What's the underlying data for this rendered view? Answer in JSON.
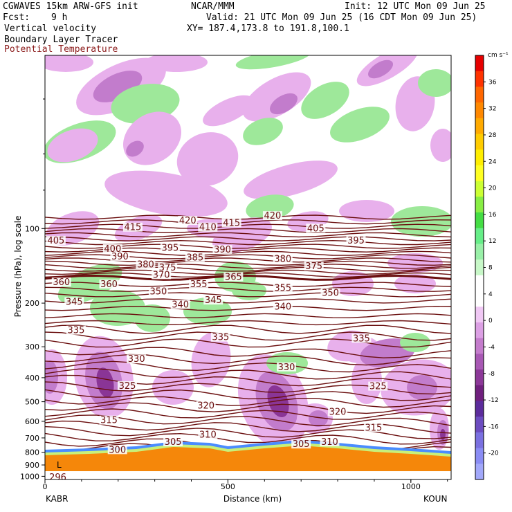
{
  "header": {
    "model": "CGWAVES 15km ARW-GFS init",
    "org": "NCAR/MMM",
    "init": "Init: 12 UTC Mon 09 Jun 25",
    "fcst_label": "Fcst:",
    "fcst_value": "9 h",
    "valid": "Valid: 21 UTC Mon 09 Jun 25 (16 CDT Mon 09 Jun 25)",
    "field1": "Vertical velocity",
    "field2": "Boundary Layer Tracer",
    "field3": "Potential Temperature",
    "xy": "XY= 187.4,173.8 to 191.8,100.1"
  },
  "colors": {
    "theta": "#6b0f0f",
    "terrain": "#f5870a",
    "field3_text": "#8b1a1a",
    "updraft": "#9ee89a",
    "downdraft_light": "#e8b0ec",
    "downdraft_mid": "#c27ccc",
    "downdraft_dark": "#8a3596"
  },
  "chart_data": {
    "type": "cross-section",
    "xlabel": "Distance (km)",
    "ylabel": "Pressure (hPa), log scale",
    "x_ticks": [
      "0",
      "500",
      "1000"
    ],
    "x_tick_values": [
      0,
      500,
      1000
    ],
    "xlim": [
      0,
      1110
    ],
    "y_ticks": [
      "100",
      "200",
      "300",
      "400",
      "500",
      "600",
      "700",
      "800",
      "900",
      "1000"
    ],
    "y_tick_values": [
      100,
      200,
      300,
      400,
      500,
      600,
      700,
      800,
      900,
      1000
    ],
    "ylim": [
      1030,
      20
    ],
    "left_station": "KABR",
    "right_station": "KOUN",
    "low_marker": "L",
    "theta_labels": [
      {
        "text": "420",
        "x": 622,
        "p": 89
      },
      {
        "text": "420",
        "x": 390,
        "p": 93
      },
      {
        "text": "415",
        "x": 240,
        "p": 99
      },
      {
        "text": "415",
        "x": 510,
        "p": 95
      },
      {
        "text": "410",
        "x": 445,
        "p": 99
      },
      {
        "text": "405",
        "x": 30,
        "p": 112
      },
      {
        "text": "405",
        "x": 740,
        "p": 100
      },
      {
        "text": "395",
        "x": 850,
        "p": 112
      },
      {
        "text": "400",
        "x": 185,
        "p": 121
      },
      {
        "text": "395",
        "x": 342,
        "p": 120
      },
      {
        "text": "390",
        "x": 205,
        "p": 130
      },
      {
        "text": "390",
        "x": 485,
        "p": 122
      },
      {
        "text": "385",
        "x": 410,
        "p": 131
      },
      {
        "text": "380",
        "x": 275,
        "p": 140
      },
      {
        "text": "380",
        "x": 650,
        "p": 133
      },
      {
        "text": "375",
        "x": 335,
        "p": 144
      },
      {
        "text": "375",
        "x": 735,
        "p": 142
      },
      {
        "text": "370",
        "x": 318,
        "p": 154
      },
      {
        "text": "365",
        "x": 515,
        "p": 157
      },
      {
        "text": "360",
        "x": 45,
        "p": 165
      },
      {
        "text": "360",
        "x": 175,
        "p": 168
      },
      {
        "text": "355",
        "x": 420,
        "p": 168
      },
      {
        "text": "355",
        "x": 650,
        "p": 174
      },
      {
        "text": "350",
        "x": 310,
        "p": 180
      },
      {
        "text": "350",
        "x": 780,
        "p": 182
      },
      {
        "text": "345",
        "x": 80,
        "p": 198
      },
      {
        "text": "345",
        "x": 460,
        "p": 195
      },
      {
        "text": "340",
        "x": 370,
        "p": 203
      },
      {
        "text": "340",
        "x": 650,
        "p": 207
      },
      {
        "text": "335",
        "x": 85,
        "p": 258
      },
      {
        "text": "335",
        "x": 480,
        "p": 275
      },
      {
        "text": "335",
        "x": 865,
        "p": 278
      },
      {
        "text": "330",
        "x": 250,
        "p": 337
      },
      {
        "text": "330",
        "x": 660,
        "p": 363
      },
      {
        "text": "325",
        "x": 225,
        "p": 432
      },
      {
        "text": "325",
        "x": 910,
        "p": 434
      },
      {
        "text": "320",
        "x": 440,
        "p": 520
      },
      {
        "text": "320",
        "x": 800,
        "p": 550
      },
      {
        "text": "315",
        "x": 175,
        "p": 595
      },
      {
        "text": "315",
        "x": 898,
        "p": 637
      },
      {
        "text": "310",
        "x": 445,
        "p": 681
      },
      {
        "text": "310",
        "x": 778,
        "p": 728
      },
      {
        "text": "305",
        "x": 350,
        "p": 728
      },
      {
        "text": "305",
        "x": 700,
        "p": 743
      },
      {
        "text": "300",
        "x": 198,
        "p": 783
      },
      {
        "text": "296",
        "x": 35,
        "p": 1010
      }
    ],
    "colorbar": {
      "unit": "cm s⁻¹",
      "tick_labels": [
        "36",
        "32",
        "28",
        "24",
        "20",
        "16",
        "12",
        "8",
        "4",
        "0",
        "-4",
        "-8",
        "-12",
        "-16",
        "-20"
      ],
      "colors": [
        "#e60000",
        "#ff3300",
        "#ff6600",
        "#ff8800",
        "#ffaa00",
        "#ffcc00",
        "#ffee00",
        "#ffff22",
        "#ccff33",
        "#88ee44",
        "#44dd44",
        "#66ee88",
        "#99f0a8",
        "#c8f8c8",
        "#ffffff",
        "#ffffff",
        "#f0c8f4",
        "#dca0e4",
        "#c47ccc",
        "#a858b4",
        "#8c3898",
        "#70207e",
        "#5c2c9c",
        "#6c4cc0",
        "#7a70e0",
        "#8a8cf4",
        "#a2a8fa"
      ]
    }
  }
}
